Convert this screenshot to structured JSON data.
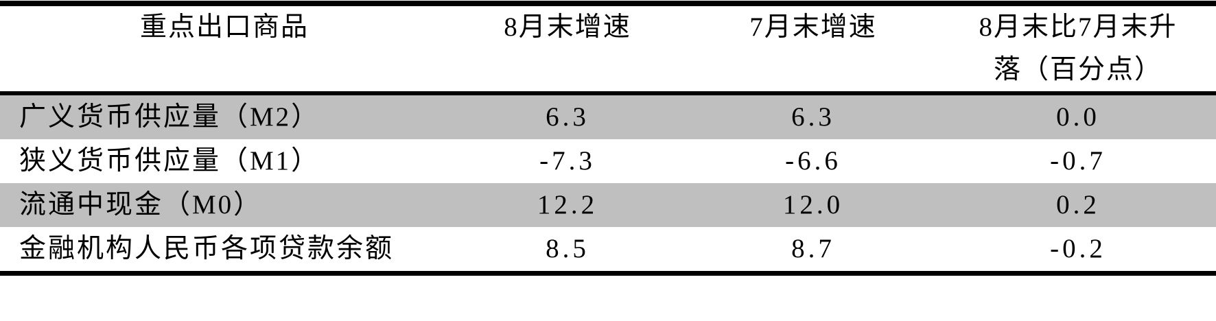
{
  "table": {
    "header": {
      "col1": "重点出口商品",
      "col2": "8月末增速",
      "col3": "7月末增速",
      "col4_line1": "8月末比7月末升",
      "col4_line2": "落（百分点）"
    },
    "rows": [
      {
        "label": "广义货币供应量（M2）",
        "aug_end": "6.3",
        "jul_end": "6.3",
        "change": "0.0"
      },
      {
        "label": "狭义货币供应量（M1）",
        "aug_end": "-7.3",
        "jul_end": "-6.6",
        "change": "-0.7"
      },
      {
        "label": "流通中现金（M0）",
        "aug_end": "12.2",
        "jul_end": "12.0",
        "change": "0.2"
      },
      {
        "label": "金融机构人民币各项贷款余额",
        "aug_end": "8.5",
        "jul_end": "8.7",
        "change": "-0.2"
      }
    ],
    "colors": {
      "stripe_row_background": "#bfbfbf",
      "border": "#000000",
      "text": "#000000",
      "page_background": "#ffffff"
    }
  }
}
